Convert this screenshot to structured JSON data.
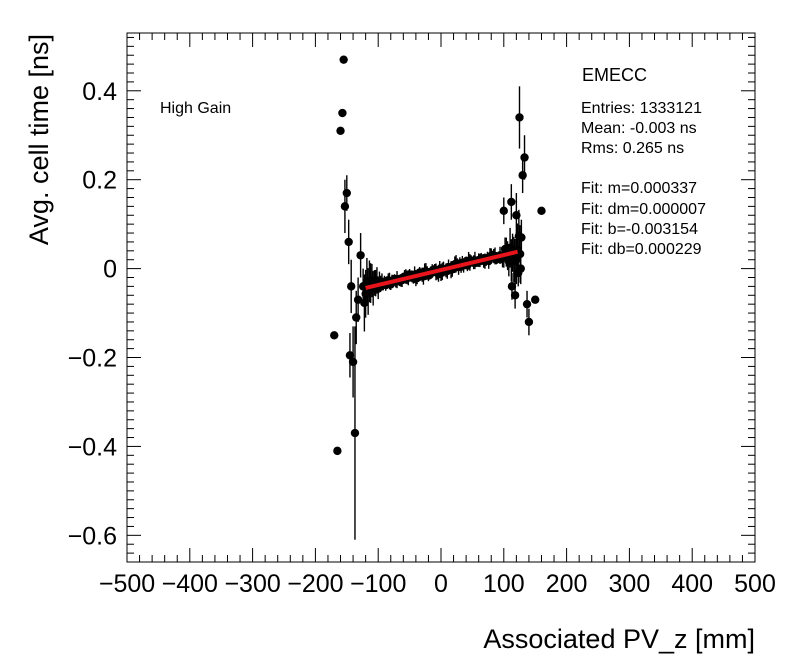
{
  "chart_data": {
    "type": "scatter",
    "xlabel": "Associated PV_z [mm]",
    "ylabel": "Avg. cell time [ns]",
    "xlim": [
      -500,
      500
    ],
    "ylim": [
      -0.66,
      0.53
    ],
    "xticks": [
      -500,
      -400,
      -300,
      -200,
      -100,
      0,
      100,
      200,
      300,
      400,
      500
    ],
    "xtick_labels": [
      "−500",
      "−400",
      "−300",
      "−200",
      "−100",
      "0",
      "100",
      "200",
      "300",
      "400",
      "500"
    ],
    "yticks": [
      -0.6,
      -0.4,
      -0.2,
      0,
      0.2,
      0.4
    ],
    "ytick_labels": [
      "−0.6",
      "−0.4",
      "−0.2",
      "0",
      "0.2",
      "0.4"
    ],
    "gain_label": "High Gain",
    "legend": {
      "title": "EMECC",
      "entries": "Entries: 1333121",
      "mean": "Mean: -0.003 ns",
      "rms": "Rms: 0.265 ns",
      "fit_m": "Fit: m=0.000337",
      "fit_dm": "Fit: dm=0.000007",
      "fit_b": "Fit: b=-0.003154",
      "fit_db": "Fit: db=0.000229"
    },
    "fit": {
      "m": 0.000337,
      "b": -0.003154,
      "x_range": [
        -120,
        122
      ],
      "color": "#e8141b"
    },
    "outliers": [
      {
        "x": -155,
        "y": 0.47,
        "err": 0
      },
      {
        "x": -160,
        "y": 0.31,
        "err": 0
      },
      {
        "x": -157,
        "y": 0.35,
        "err": 0
      },
      {
        "x": -150,
        "y": 0.17,
        "err": 0.04
      },
      {
        "x": -153,
        "y": 0.14,
        "err": 0.06
      },
      {
        "x": -147,
        "y": 0.06,
        "err": 0.05
      },
      {
        "x": -143,
        "y": -0.04,
        "err": 0.06
      },
      {
        "x": -170,
        "y": -0.15,
        "err": 0
      },
      {
        "x": -165,
        "y": -0.41,
        "err": 0
      },
      {
        "x": -145,
        "y": -0.195,
        "err": 0.05
      },
      {
        "x": -140,
        "y": -0.21,
        "err": 0.08
      },
      {
        "x": -137,
        "y": -0.37,
        "err": 0.24
      },
      {
        "x": -135,
        "y": -0.11,
        "err": 0.06
      },
      {
        "x": -132,
        "y": -0.07,
        "err": 0.05
      },
      {
        "x": -128,
        "y": 0.03,
        "err": 0.05
      },
      {
        "x": -124,
        "y": -0.04,
        "err": 0.04
      },
      {
        "x": 100,
        "y": 0.13,
        "err": 0.03
      },
      {
        "x": 112,
        "y": 0.15,
        "err": 0.04
      },
      {
        "x": 120,
        "y": 0.12,
        "err": 0.05
      },
      {
        "x": 125,
        "y": 0.34,
        "err": 0.07
      },
      {
        "x": 133,
        "y": 0.25,
        "err": 0.05
      },
      {
        "x": 130,
        "y": 0.21,
        "err": 0.04
      },
      {
        "x": 160,
        "y": 0.13,
        "err": 0
      },
      {
        "x": 150,
        "y": -0.07,
        "err": 0
      },
      {
        "x": 140,
        "y": -0.12,
        "err": 0.03
      },
      {
        "x": 137,
        "y": -0.08,
        "err": 0.03
      },
      {
        "x": 118,
        "y": -0.06,
        "err": 0.03
      },
      {
        "x": 128,
        "y": 0.07,
        "err": 0.04
      },
      {
        "x": 113,
        "y": -0.04,
        "err": 0.03
      },
      {
        "x": 123,
        "y": -0.01,
        "err": 0.03
      },
      {
        "x": 127,
        "y": 0.0,
        "err": 0.035
      }
    ]
  }
}
